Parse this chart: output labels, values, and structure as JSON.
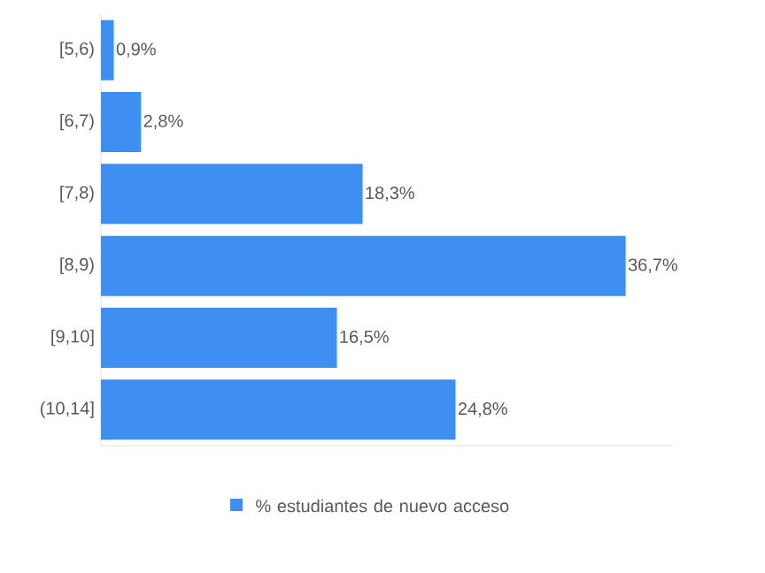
{
  "chart_data": {
    "type": "bar",
    "orientation": "horizontal",
    "categories": [
      "[5,6)",
      "[6,7)",
      "[7,8)",
      "[8,9)",
      "[9,10]",
      "(10,14]"
    ],
    "series": [
      {
        "name": "% estudiantes de nuevo acceso",
        "color": "#3f8ef2",
        "values": [
          0.9,
          2.8,
          18.3,
          36.7,
          16.5,
          24.8
        ],
        "value_labels": [
          "0,9%",
          "2,8%",
          "18,3%",
          "36,7%",
          "16,5%",
          "24,8%"
        ]
      }
    ],
    "tick_labels": "y",
    "legend": "bottom"
  }
}
